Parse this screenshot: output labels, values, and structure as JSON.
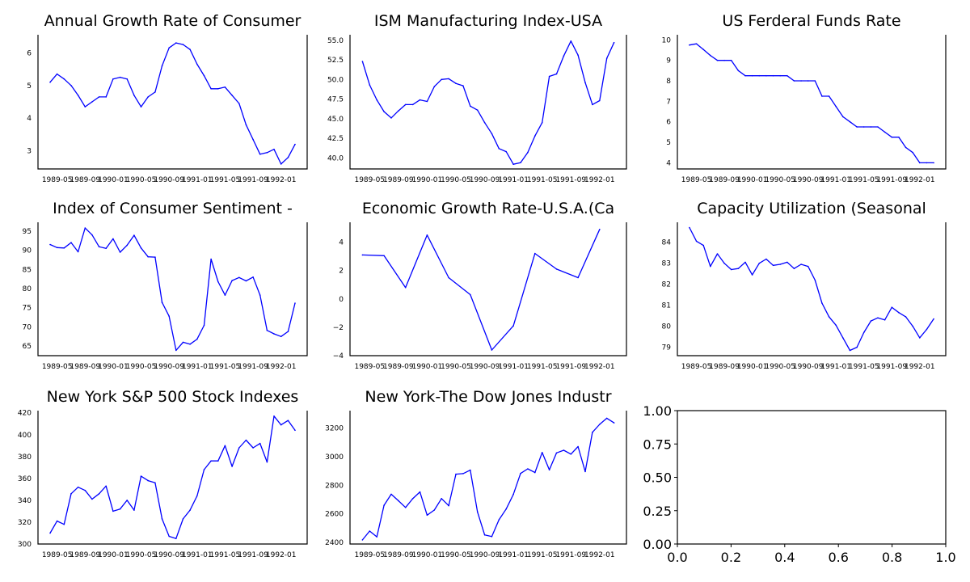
{
  "figure": {
    "rows": 3,
    "cols": 3,
    "line_color": "#0000ff"
  },
  "chart_data": [
    {
      "type": "line",
      "title": "Annual Growth Rate of Consumer",
      "xlabel": "",
      "ylabel": "",
      "x_tick_labels": [
        "1989-05",
        "1989-09",
        "1990-01",
        "1990-05",
        "1990-09",
        "1991-01",
        "1991-05",
        "1991-09",
        "1992-01"
      ],
      "x_start": "1989-04",
      "x_step": "monthly",
      "yticks": [
        3,
        4,
        5,
        6
      ],
      "ylim": [
        2.45,
        6.55
      ],
      "values": [
        5.1,
        5.35,
        5.2,
        5.0,
        4.7,
        4.35,
        4.5,
        4.65,
        4.65,
        5.2,
        5.25,
        5.2,
        4.7,
        4.35,
        4.65,
        4.8,
        5.6,
        6.15,
        6.3,
        6.25,
        6.1,
        5.65,
        5.3,
        4.9,
        4.9,
        4.95,
        4.7,
        4.45,
        3.8,
        3.35,
        2.9,
        2.95,
        3.05,
        2.6,
        2.8,
        3.2
      ]
    },
    {
      "type": "line",
      "title": "ISM Manufacturing Index-USA",
      "xlabel": "",
      "ylabel": "",
      "x_tick_labels": [
        "1989-05",
        "1989-09",
        "1990-01",
        "1990-05",
        "1990-09",
        "1991-01",
        "1991-05",
        "1991-09",
        "1992-01"
      ],
      "x_start": "1989-04",
      "x_step": "monthly",
      "yticks": [
        40.0,
        42.5,
        45.0,
        47.5,
        50.0,
        52.5,
        55.0
      ],
      "ylim": [
        38.6,
        55.7
      ],
      "values": [
        52.3,
        49.3,
        47.4,
        45.9,
        45.1,
        46.0,
        46.8,
        46.8,
        47.4,
        47.2,
        49.1,
        50.0,
        50.1,
        49.5,
        49.2,
        46.6,
        46.1,
        44.5,
        43.1,
        41.2,
        40.8,
        39.2,
        39.4,
        40.7,
        42.8,
        44.5,
        50.4,
        50.7,
        53.0,
        54.9,
        53.1,
        49.6,
        46.8,
        47.3,
        52.7,
        54.7
      ]
    },
    {
      "type": "line",
      "title": "US Ferderal Funds Rate",
      "xlabel": "",
      "ylabel": "",
      "x_tick_labels": [
        "1989-05",
        "1989-09",
        "1990-01",
        "1990-05",
        "1990-09",
        "1991-01",
        "1991-05",
        "1991-09",
        "1992-01"
      ],
      "x_start": "1989-04",
      "x_step": "monthly",
      "yticks": [
        4,
        5,
        6,
        7,
        8,
        9,
        10
      ],
      "ylim": [
        3.7,
        10.25
      ],
      "values": [
        9.75,
        9.81,
        9.53,
        9.24,
        9.0,
        9.0,
        9.0,
        8.5,
        8.25,
        8.25,
        8.25,
        8.25,
        8.25,
        8.25,
        8.25,
        8.0,
        8.0,
        8.0,
        8.0,
        7.25,
        7.25,
        6.75,
        6.25,
        6.0,
        5.75,
        5.75,
        5.75,
        5.75,
        5.5,
        5.25,
        5.25,
        4.75,
        4.5,
        4.0,
        4.0,
        4.0
      ]
    },
    {
      "type": "line",
      "title": "Index of Consumer Sentiment -",
      "xlabel": "",
      "ylabel": "",
      "x_tick_labels": [
        "1989-05",
        "1989-09",
        "1990-01",
        "1990-05",
        "1990-09",
        "1991-01",
        "1991-05",
        "1991-09",
        "1992-01"
      ],
      "x_start": "1989-04",
      "x_step": "monthly",
      "yticks": [
        65,
        70,
        75,
        80,
        85,
        90,
        95
      ],
      "ylim": [
        62.5,
        97.3
      ],
      "values": [
        91.5,
        90.7,
        90.6,
        92.0,
        89.6,
        95.8,
        94.0,
        90.9,
        90.5,
        93.0,
        89.5,
        91.3,
        93.9,
        90.6,
        88.3,
        88.2,
        76.4,
        72.8,
        63.9,
        66.0,
        65.5,
        66.8,
        70.4,
        87.7,
        81.8,
        78.3,
        82.1,
        82.9,
        82.0,
        83.0,
        78.3,
        69.1,
        68.2,
        67.5,
        68.8,
        76.2
      ]
    },
    {
      "type": "line",
      "title": "Economic Growth Rate-U.S.A.(Ca",
      "xlabel": "",
      "ylabel": "",
      "x_tick_labels": [
        "1989-05",
        "1989-09",
        "1990-01",
        "1990-05",
        "1990-09",
        "1991-01",
        "1991-05",
        "1991-09",
        "1992-01"
      ],
      "x_start": "1989-04",
      "x_step": "quarterly",
      "yticks": [
        -4,
        -2,
        0,
        2,
        4
      ],
      "ylim": [
        -4.0,
        5.4
      ],
      "values": [
        3.1,
        3.05,
        0.8,
        4.5,
        1.5,
        0.3,
        -3.6,
        -1.9,
        3.2,
        2.1,
        1.5,
        4.9
      ]
    },
    {
      "type": "line",
      "title": "Capacity Utilization (Seasonal",
      "xlabel": "",
      "ylabel": "",
      "x_tick_labels": [
        "1989-05",
        "1989-09",
        "1990-01",
        "1990-05",
        "1990-09",
        "1991-01",
        "1991-05",
        "1991-09",
        "1992-01"
      ],
      "x_start": "1989-04",
      "x_step": "monthly",
      "yticks": [
        79,
        80,
        81,
        82,
        83,
        84
      ],
      "ylim": [
        78.6,
        84.95
      ],
      "values": [
        84.7,
        84.05,
        83.85,
        82.85,
        83.45,
        83.0,
        82.7,
        82.75,
        83.05,
        82.45,
        83.0,
        83.2,
        82.9,
        82.95,
        83.05,
        82.75,
        82.95,
        82.85,
        82.2,
        81.1,
        80.45,
        80.05,
        79.45,
        78.85,
        79.0,
        79.7,
        80.25,
        80.4,
        80.3,
        80.9,
        80.65,
        80.45,
        80.0,
        79.45,
        79.85,
        80.35
      ]
    },
    {
      "type": "line",
      "title": "New York S&P 500 Stock Indexes",
      "xlabel": "",
      "ylabel": "",
      "x_tick_labels": [
        "1989-05",
        "1989-09",
        "1990-01",
        "1990-05",
        "1990-09",
        "1991-01",
        "1991-05",
        "1991-09",
        "1992-01"
      ],
      "x_start": "1989-04",
      "x_step": "monthly",
      "yticks": [
        300,
        320,
        340,
        360,
        380,
        400,
        420
      ],
      "ylim": [
        300,
        422
      ],
      "values": [
        310,
        321,
        318,
        346,
        352,
        349,
        341,
        346,
        353,
        330,
        332,
        340,
        331,
        362,
        358,
        356,
        323,
        307,
        305,
        323,
        331,
        344,
        368,
        376,
        376,
        390,
        371,
        388,
        395,
        388,
        392,
        375,
        417,
        409,
        413,
        404
      ]
    },
    {
      "type": "line",
      "title": "New York-The Dow Jones Industr",
      "xlabel": "",
      "ylabel": "",
      "x_tick_labels": [
        "1989-05",
        "1989-09",
        "1990-01",
        "1990-05",
        "1990-09",
        "1991-01",
        "1991-05",
        "1991-09",
        "1992-01"
      ],
      "x_start": "1989-04",
      "x_step": "monthly",
      "yticks": [
        2400,
        2600,
        2800,
        3000,
        3200
      ],
      "ylim": [
        2390,
        3320
      ],
      "values": [
        2419,
        2480,
        2440,
        2660,
        2737,
        2692,
        2645,
        2706,
        2753,
        2591,
        2627,
        2707,
        2657,
        2877,
        2881,
        2905,
        2614,
        2453,
        2442,
        2559,
        2634,
        2736,
        2882,
        2914,
        2888,
        3028,
        2907,
        3025,
        3044,
        3017,
        3069,
        2895,
        3169,
        3224,
        3267,
        3235
      ]
    },
    {
      "type": "line",
      "title": "",
      "xlabel": "",
      "ylabel": "",
      "xticks": [
        "0.0",
        "0.2",
        "0.4",
        "0.6",
        "0.8",
        "1.0"
      ],
      "yticks": [
        "0.00",
        "0.25",
        "0.50",
        "0.75",
        "1.00"
      ],
      "xlim": [
        0,
        1
      ],
      "ylim": [
        0,
        1
      ],
      "values": []
    }
  ]
}
